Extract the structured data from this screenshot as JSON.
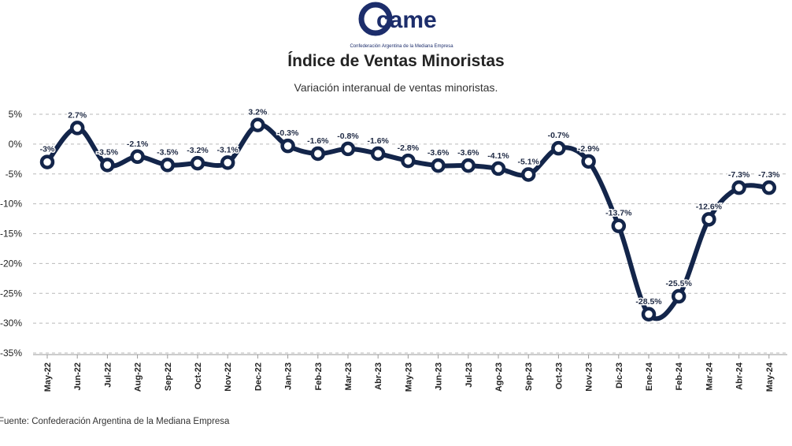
{
  "header": {
    "logo_text": "came",
    "logo_subtext": "Confederación Argentina de la Mediana Empresa",
    "title": "Índice de Ventas Minoristas",
    "subtitle": "Variación interanual de ventas minoristas."
  },
  "footer": {
    "source": "Fuente: Confederación Argentina de la Mediana Empresa"
  },
  "colors": {
    "line": "#13254a",
    "marker_fill": "#ffffff",
    "grid": "#b9b9b9",
    "text": "#1f2a44"
  },
  "chart_data": {
    "type": "line",
    "title": "Índice de Ventas Minoristas",
    "subtitle": "Variación interanual de ventas minoristas.",
    "xlabel": "",
    "ylabel": "",
    "ylim": [
      -35,
      5
    ],
    "yticks": [
      5,
      0,
      -5,
      -10,
      -15,
      -20,
      -25,
      -30,
      -35
    ],
    "ytick_labels": [
      "5%",
      "0%",
      "-5%",
      "-10%",
      "-15%",
      "-20%",
      "-25%",
      "-30%",
      "-35%"
    ],
    "grid": "horizontal dashed",
    "legend": "none",
    "categories": [
      "May-22",
      "Jun-22",
      "Jul-22",
      "Aug-22",
      "Sep-22",
      "Oct-22",
      "Nov-22",
      "Dec-22",
      "Jan-23",
      "Feb-23",
      "Mar-23",
      "Abr-23",
      "May-23",
      "Jun-23",
      "Jul-23",
      "Ago-23",
      "Sep-23",
      "Oct-23",
      "Nov-23",
      "Dic-23",
      "Ene-24",
      "Feb-24",
      "Mar-24",
      "Abr-24",
      "May-24"
    ],
    "values": [
      -3,
      2.7,
      -3.5,
      -2.1,
      -3.5,
      -3.2,
      -3.1,
      3.2,
      -0.3,
      -1.6,
      -0.8,
      -1.6,
      -2.8,
      -3.6,
      -3.6,
      -4.1,
      -5.1,
      -0.7,
      -2.9,
      -13.7,
      -28.5,
      -25.5,
      -12.6,
      -7.3,
      -7.3
    ],
    "data_labels": [
      "-3%",
      "2.7%",
      "-3.5%",
      "-2.1%",
      "-3.5%",
      "-3.2%",
      "-3.1%",
      "3.2%",
      "-0.3%",
      "-1.6%",
      "-0.8%",
      "-1.6%",
      "-2.8%",
      "-3.6%",
      "-3.6%",
      "-4.1%",
      "-5.1%",
      "-0.7%",
      "-2.9%",
      "-13.7%",
      "-28.5%",
      "-25.5%",
      "-12.6%",
      "-7.3%",
      "-7.3%"
    ]
  }
}
